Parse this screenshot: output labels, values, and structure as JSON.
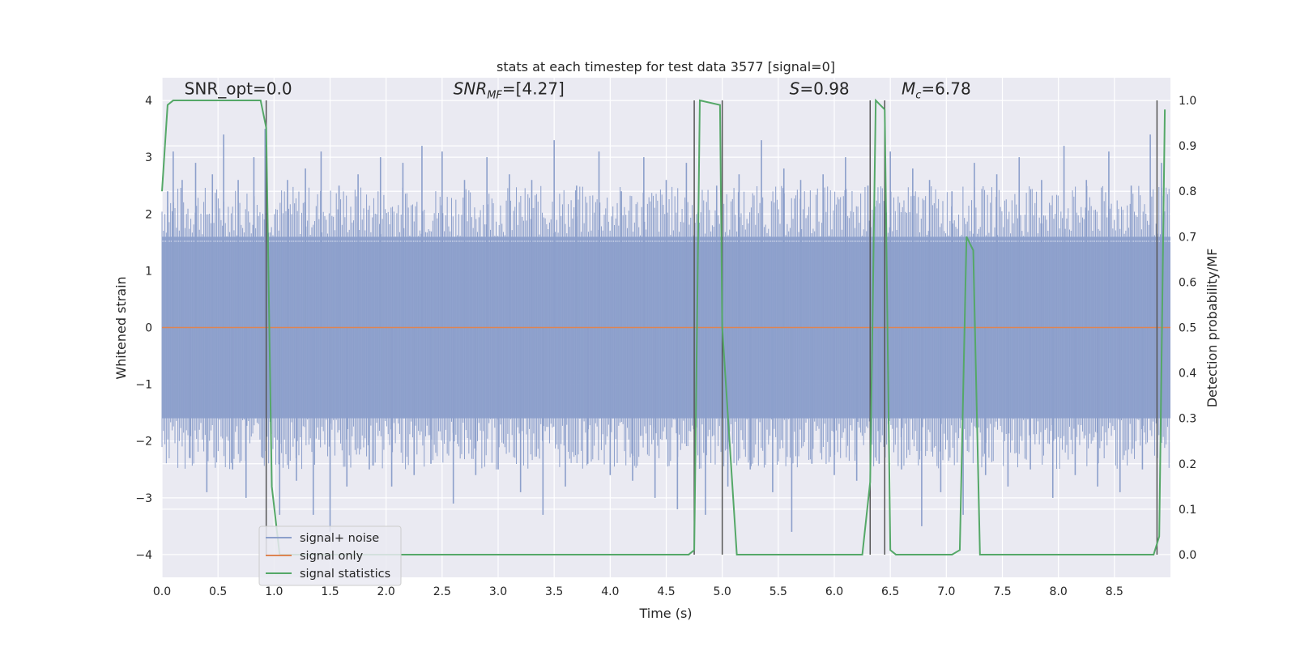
{
  "chart_data": {
    "type": "line",
    "title": "stats at each timestep for test data 3577 [signal=0]",
    "xlabel": "Time (s)",
    "ylabel": "Whitened strain",
    "y2label": "Detection probability/MF",
    "xlim": [
      0.0,
      9.0
    ],
    "ylim": [
      -4.4,
      4.4
    ],
    "y2lim": [
      -0.05,
      1.05
    ],
    "xticks": [
      "0.0",
      "0.5",
      "1.0",
      "1.5",
      "2.0",
      "2.5",
      "3.0",
      "3.5",
      "4.0",
      "4.5",
      "5.0",
      "5.5",
      "6.0",
      "6.5",
      "7.0",
      "7.5",
      "8.0",
      "8.5"
    ],
    "yticks": [
      "4",
      "3",
      "2",
      "1",
      "0",
      "−1",
      "−2",
      "−3",
      "−4"
    ],
    "y2ticks": [
      "1.0",
      "0.9",
      "0.8",
      "0.7",
      "0.6",
      "0.5",
      "0.4",
      "0.3",
      "0.2",
      "0.1",
      "0.0"
    ],
    "grid": true,
    "legend_position": "lower-left",
    "annotations": [
      {
        "text": "SNR_opt=0.0",
        "x": 0.2,
        "y": 4.05
      },
      {
        "text": "SNR_MF=[4.27]",
        "x": 2.6,
        "y": 4.05
      },
      {
        "text": "S=0.98",
        "x": 5.6,
        "y": 4.05
      },
      {
        "text": "M_c=6.78",
        "x": 6.6,
        "y": 4.05
      }
    ],
    "vertical_lines_x": [
      0.93,
      4.75,
      5.0,
      6.32,
      6.45,
      8.88
    ],
    "series": [
      {
        "name": "signal+ noise",
        "color": "#8c9fcb",
        "axis": "left",
        "core_band": [
          -1.6,
          1.6
        ],
        "spikes": [
          {
            "x": 0.05,
            "y": 2.4
          },
          {
            "x": 0.1,
            "y": 3.1
          },
          {
            "x": 0.18,
            "y": 2.6
          },
          {
            "x": 0.25,
            "y": -2.3
          },
          {
            "x": 0.3,
            "y": 2.9
          },
          {
            "x": 0.4,
            "y": -2.9
          },
          {
            "x": 0.45,
            "y": 2.7
          },
          {
            "x": 0.55,
            "y": 3.4
          },
          {
            "x": 0.63,
            "y": -2.5
          },
          {
            "x": 0.68,
            "y": 2.6
          },
          {
            "x": 0.75,
            "y": -3.0
          },
          {
            "x": 0.82,
            "y": 3.0
          },
          {
            "x": 0.9,
            "y": -2.3
          },
          {
            "x": 0.92,
            "y": 3.5
          },
          {
            "x": 1.05,
            "y": -3.3
          },
          {
            "x": 1.12,
            "y": 2.6
          },
          {
            "x": 1.2,
            "y": -2.7
          },
          {
            "x": 1.28,
            "y": 2.8
          },
          {
            "x": 1.35,
            "y": -3.3
          },
          {
            "x": 1.42,
            "y": 3.1
          },
          {
            "x": 1.5,
            "y": -3.6
          },
          {
            "x": 1.58,
            "y": 2.5
          },
          {
            "x": 1.65,
            "y": -2.8
          },
          {
            "x": 1.75,
            "y": 2.7
          },
          {
            "x": 1.85,
            "y": -2.5
          },
          {
            "x": 1.95,
            "y": 3.0
          },
          {
            "x": 2.05,
            "y": -2.8
          },
          {
            "x": 2.15,
            "y": 2.9
          },
          {
            "x": 2.25,
            "y": -2.6
          },
          {
            "x": 2.32,
            "y": 3.2
          },
          {
            "x": 2.4,
            "y": -2.4
          },
          {
            "x": 2.5,
            "y": 3.1
          },
          {
            "x": 2.6,
            "y": -3.1
          },
          {
            "x": 2.7,
            "y": 2.6
          },
          {
            "x": 2.8,
            "y": -2.6
          },
          {
            "x": 2.9,
            "y": 3.0
          },
          {
            "x": 3.0,
            "y": -2.5
          },
          {
            "x": 3.1,
            "y": 2.7
          },
          {
            "x": 3.2,
            "y": -2.9
          },
          {
            "x": 3.3,
            "y": 2.6
          },
          {
            "x": 3.4,
            "y": -3.3
          },
          {
            "x": 3.5,
            "y": 3.3
          },
          {
            "x": 3.6,
            "y": -2.8
          },
          {
            "x": 3.7,
            "y": 2.5
          },
          {
            "x": 3.8,
            "y": -2.4
          },
          {
            "x": 3.9,
            "y": 3.1
          },
          {
            "x": 4.0,
            "y": -2.6
          },
          {
            "x": 4.1,
            "y": 2.4
          },
          {
            "x": 4.2,
            "y": -2.7
          },
          {
            "x": 4.3,
            "y": 3.0
          },
          {
            "x": 4.4,
            "y": -3.0
          },
          {
            "x": 4.5,
            "y": 2.6
          },
          {
            "x": 4.6,
            "y": -3.2
          },
          {
            "x": 4.68,
            "y": 2.9
          },
          {
            "x": 4.85,
            "y": -3.3
          },
          {
            "x": 4.95,
            "y": 2.5
          },
          {
            "x": 5.05,
            "y": -2.8
          },
          {
            "x": 5.15,
            "y": 2.7
          },
          {
            "x": 5.25,
            "y": -2.5
          },
          {
            "x": 5.35,
            "y": 3.3
          },
          {
            "x": 5.45,
            "y": -2.9
          },
          {
            "x": 5.55,
            "y": 2.8
          },
          {
            "x": 5.62,
            "y": -3.6
          },
          {
            "x": 5.7,
            "y": 2.6
          },
          {
            "x": 5.8,
            "y": -2.4
          },
          {
            "x": 5.9,
            "y": 2.7
          },
          {
            "x": 6.0,
            "y": -2.6
          },
          {
            "x": 6.1,
            "y": 3.0
          },
          {
            "x": 6.2,
            "y": -2.7
          },
          {
            "x": 6.3,
            "y": 2.5
          },
          {
            "x": 6.4,
            "y": -2.4
          },
          {
            "x": 6.5,
            "y": 3.1
          },
          {
            "x": 6.6,
            "y": -2.5
          },
          {
            "x": 6.7,
            "y": 2.8
          },
          {
            "x": 6.78,
            "y": -3.5
          },
          {
            "x": 6.85,
            "y": 2.6
          },
          {
            "x": 6.95,
            "y": -2.9
          },
          {
            "x": 7.05,
            "y": 2.4
          },
          {
            "x": 7.15,
            "y": -3.3
          },
          {
            "x": 7.25,
            "y": 2.9
          },
          {
            "x": 7.35,
            "y": -2.6
          },
          {
            "x": 7.45,
            "y": 2.7
          },
          {
            "x": 7.55,
            "y": -2.8
          },
          {
            "x": 7.65,
            "y": 3.0
          },
          {
            "x": 7.75,
            "y": -2.5
          },
          {
            "x": 7.85,
            "y": 2.6
          },
          {
            "x": 7.95,
            "y": -3.0
          },
          {
            "x": 8.05,
            "y": 3.2
          },
          {
            "x": 8.15,
            "y": -2.6
          },
          {
            "x": 8.25,
            "y": 2.6
          },
          {
            "x": 8.35,
            "y": -2.8
          },
          {
            "x": 8.45,
            "y": 3.1
          },
          {
            "x": 8.55,
            "y": -2.9
          },
          {
            "x": 8.65,
            "y": 2.5
          },
          {
            "x": 8.75,
            "y": -2.5
          },
          {
            "x": 8.82,
            "y": 3.4
          },
          {
            "x": 8.92,
            "y": 2.9
          }
        ]
      },
      {
        "name": "signal only",
        "color": "#dd8452",
        "axis": "left",
        "x": [
          0.0,
          9.0
        ],
        "y": [
          0.0,
          0.0
        ]
      },
      {
        "name": "signal statistics",
        "color": "#55a868",
        "axis": "right",
        "x": [
          0.0,
          0.05,
          0.1,
          0.5,
          0.88,
          0.93,
          0.98,
          1.05,
          4.7,
          4.75,
          4.8,
          4.98,
          5.0,
          5.13,
          5.35,
          6.25,
          6.32,
          6.37,
          6.45,
          6.5,
          6.55,
          7.05,
          7.12,
          7.18,
          7.24,
          7.3,
          8.85,
          8.9,
          8.95
        ],
        "y": [
          0.8,
          0.99,
          1.0,
          1.0,
          1.0,
          0.94,
          0.15,
          0.0,
          0.0,
          0.01,
          1.0,
          0.99,
          0.5,
          0.0,
          0.0,
          0.0,
          0.16,
          1.0,
          0.98,
          0.01,
          0.0,
          0.0,
          0.01,
          0.7,
          0.67,
          0.0,
          0.0,
          0.04,
          0.98
        ]
      }
    ]
  }
}
